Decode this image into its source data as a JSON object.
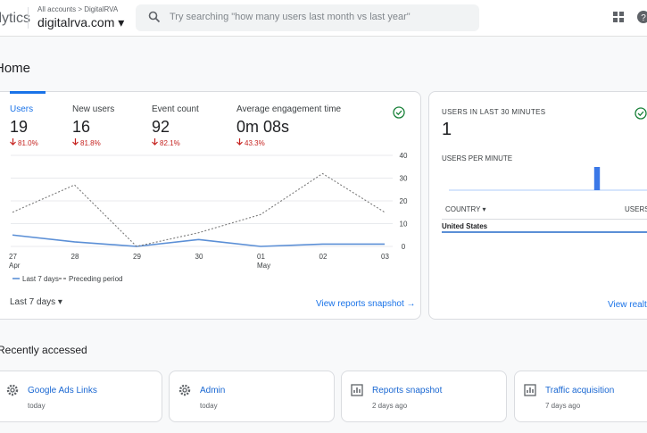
{
  "header": {
    "product": "Analytics",
    "breadcrumb": "All accounts > DigitalRVA",
    "property": "digitalrva.com",
    "search_placeholder": "Try searching \"how many users last month vs last year\""
  },
  "page_title": "Home",
  "metrics": [
    {
      "label": "Users",
      "value": "19",
      "change": "81.0%"
    },
    {
      "label": "New users",
      "value": "16",
      "change": "81.8%"
    },
    {
      "label": "Event count",
      "value": "92",
      "change": "82.1%"
    },
    {
      "label": "Average engagement time",
      "value": "0m 08s",
      "change": "43.3%"
    }
  ],
  "chart_data": {
    "type": "line",
    "categories": [
      "27\nApr",
      "28",
      "29",
      "30",
      "01\nMay",
      "02",
      "03"
    ],
    "series": [
      {
        "name": "Last 7 days",
        "color": "#5b8fd6",
        "values": [
          5,
          2,
          0,
          3,
          0,
          1,
          1
        ]
      },
      {
        "name": "Preceding period",
        "color": "#7a7a7a",
        "values": [
          15,
          27,
          0,
          6,
          14,
          32,
          15
        ]
      }
    ],
    "ylim": [
      0,
      40
    ],
    "yticks": [
      0,
      10,
      20,
      30,
      40
    ],
    "grid": true
  },
  "date_range": "Last 7 days",
  "snapshot_link": "View reports snapshot",
  "realtime": {
    "title": "USERS IN LAST 30 MINUTES",
    "value": "1",
    "per_minute_label": "USERS PER MINUTE",
    "per_minute": [
      0,
      0,
      0,
      0,
      0,
      0,
      0,
      0,
      0,
      0,
      0,
      0,
      0,
      0,
      0,
      0,
      0,
      0,
      0,
      0,
      0,
      0,
      1,
      0,
      0,
      0,
      0,
      0,
      0,
      0
    ],
    "col_country": "COUNTRY",
    "col_users": "USERS",
    "row_country": "United States",
    "link": "View realtime"
  },
  "recent_title": "Recently accessed",
  "recent": [
    {
      "title": "Google Ads Links",
      "time": "today"
    },
    {
      "title": "Admin",
      "time": "today"
    },
    {
      "title": "Reports snapshot",
      "time": "2 days ago"
    },
    {
      "title": "Traffic acquisition",
      "time": "7 days ago"
    }
  ]
}
